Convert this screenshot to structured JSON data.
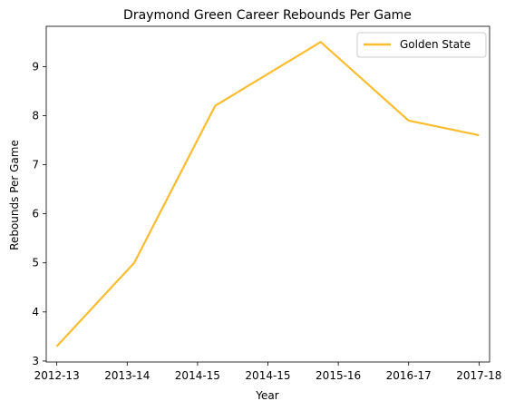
{
  "chart_data": {
    "type": "line",
    "title": "Draymond Green Career Rebounds Per Game",
    "xlabel": "Year",
    "ylabel": "Rebounds Per Game",
    "x_tick_labels": [
      "2012-13",
      "2013-14",
      "2014-15",
      "2014-15",
      "2015-16",
      "2016-17",
      "2017-18"
    ],
    "y_ticks": [
      3,
      4,
      5,
      6,
      7,
      8,
      9
    ],
    "ylim": [
      2.98,
      9.82
    ],
    "xlim": [
      -0.15,
      6.15
    ],
    "grid": false,
    "legend_position": "top-right",
    "series": [
      {
        "name": "Golden State",
        "color": "#fbbc2f",
        "x": [
          0,
          1.1,
          2.25,
          3.75,
          5.0,
          6.0
        ],
        "values": [
          3.3,
          5.0,
          8.2,
          9.5,
          7.9,
          7.6
        ]
      }
    ]
  }
}
